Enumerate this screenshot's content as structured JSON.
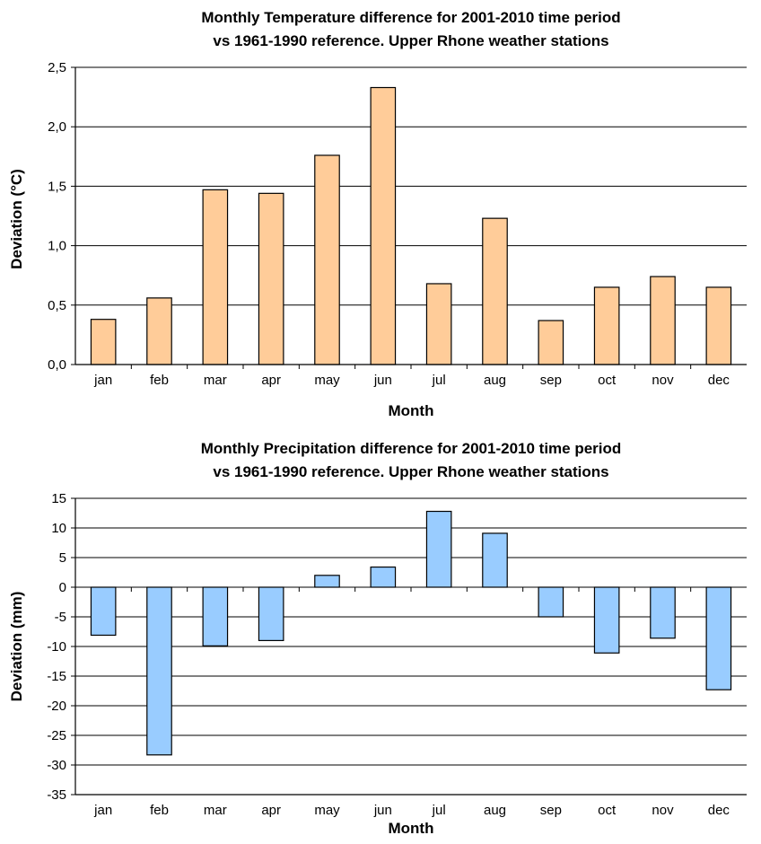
{
  "chart_data": [
    {
      "type": "bar",
      "title_line1": "Monthly Temperature difference for 2001-2010 time period",
      "title_line2": "vs 1961-1990 reference. Upper Rhone weather stations",
      "xlabel": "Month",
      "ylabel": "Deviation (°C)",
      "categories": [
        "jan",
        "feb",
        "mar",
        "apr",
        "may",
        "jun",
        "jul",
        "aug",
        "sep",
        "oct",
        "nov",
        "dec"
      ],
      "values": [
        0.38,
        0.56,
        1.47,
        1.44,
        1.76,
        2.33,
        0.68,
        1.23,
        0.37,
        0.65,
        0.74,
        0.65
      ],
      "ylim": [
        0,
        2.5
      ],
      "yticks": [
        0,
        0.5,
        1.0,
        1.5,
        2.0,
        2.5
      ],
      "ytick_labels": [
        "0,0",
        "0,5",
        "1,0",
        "1,5",
        "2,0",
        "2,5"
      ],
      "bar_color": "#FFCC99",
      "grid": true,
      "legend": "none"
    },
    {
      "type": "bar",
      "title_line1": "Monthly Precipitation difference for 2001-2010 time period",
      "title_line2": "vs 1961-1990 reference. Upper Rhone  weather stations",
      "xlabel": "Month",
      "ylabel": "Deviation (mm)",
      "categories": [
        "jan",
        "feb",
        "mar",
        "apr",
        "may",
        "jun",
        "jul",
        "aug",
        "sep",
        "oct",
        "nov",
        "dec"
      ],
      "values": [
        -8.1,
        -28.3,
        -9.9,
        -9.0,
        2.0,
        3.4,
        12.8,
        9.1,
        -5.0,
        -11.1,
        -8.6,
        -17.3
      ],
      "ylim": [
        -35,
        15
      ],
      "yticks": [
        -35,
        -30,
        -25,
        -20,
        -15,
        -10,
        -5,
        0,
        5,
        10,
        15
      ],
      "ytick_labels": [
        "-35",
        "-30",
        "-25",
        "-20",
        "-15",
        "-10",
        "-5",
        "0",
        "5",
        "10",
        "15"
      ],
      "bar_color": "#99CCFF",
      "grid": true,
      "legend": "none"
    }
  ]
}
